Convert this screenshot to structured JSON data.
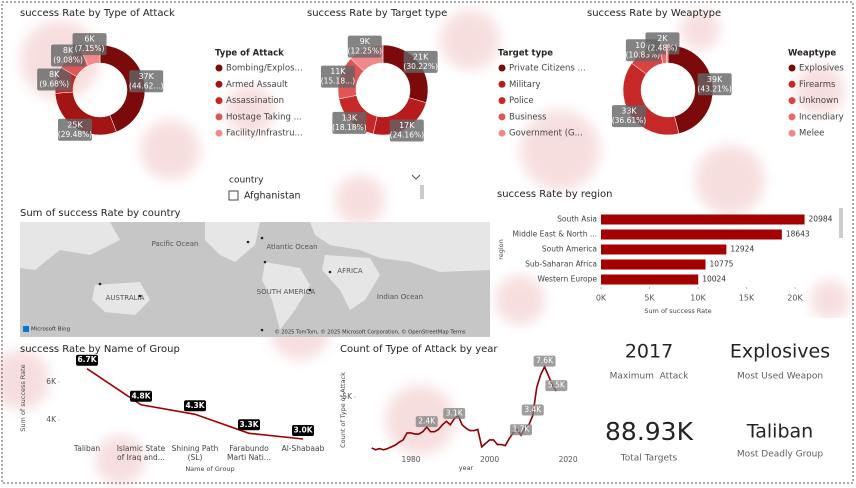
{
  "chart_data": [
    {
      "type": "pie",
      "donut": true,
      "title": "success Rate by Type of Attack",
      "legend_title": "Type of Attack",
      "categories": [
        "Bombing/Explos...",
        "Armed Assault",
        "Assassination",
        "Hostage Taking ...",
        "Facility/Infrastru..."
      ],
      "values": [
        37000,
        25000,
        8000,
        8000,
        6000
      ],
      "value_labels": [
        "37K",
        "25K",
        "8K",
        "8K",
        "6K"
      ],
      "percent_labels": [
        "(44.62...)",
        "(29.48%)",
        "(9.68%)",
        "(9.08%)",
        "(7.15%)"
      ],
      "colors": [
        "#7b0a0a",
        "#a31515",
        "#c62828",
        "#e05555",
        "#ef8a8a"
      ]
    },
    {
      "type": "pie",
      "donut": true,
      "title": "success Rate by Target type",
      "legend_title": "Target type",
      "categories": [
        "Private Citizens ...",
        "Military",
        "Police",
        "Business",
        "Government (G..."
      ],
      "values": [
        21000,
        17000,
        13000,
        11000,
        9000
      ],
      "value_labels": [
        "21K",
        "17K",
        "13K",
        "11K",
        "9K"
      ],
      "percent_labels": [
        "(30.22%)",
        "(24.16%)",
        "(18.18%)",
        "(15.18...)",
        "(12.25%)"
      ],
      "colors": [
        "#7b0a0a",
        "#b71c1c",
        "#c62828",
        "#e05555",
        "#ef8a8a"
      ]
    },
    {
      "type": "pie",
      "donut": true,
      "title": "success Rate by Weaptype",
      "legend_title": "Weaptype",
      "categories": [
        "Explosives",
        "Firearms",
        "Unknown",
        "Incendiary",
        "Melee"
      ],
      "values": [
        39000,
        33000,
        10000,
        2000,
        600
      ],
      "value_labels": [
        "39K",
        "33K",
        "10K",
        "2K",
        null
      ],
      "percent_labels": [
        "(43.21%)",
        "(36.61%)",
        "(10.83%)",
        "(2.48%)",
        null
      ],
      "colors": [
        "#7b0a0a",
        "#c62828",
        "#d84343",
        "#e86a6a",
        "#ef8a8a"
      ]
    },
    {
      "type": "map",
      "title": "Sum of success Rate by country",
      "labels": [
        "Pacific Ocean",
        "Atlantic Ocean",
        "AFRICA",
        "AUSTRALIA",
        "SOUTH AMERICA",
        "Indian Ocean"
      ],
      "attribution": "© 2025 TomTom, © 2025 Microsoft Corporation, © OpenStreetMap  Terms",
      "logo": "Microsoft Bing"
    },
    {
      "type": "bar",
      "orientation": "horizontal",
      "title": "success Rate by region",
      "x_label": "Sum of success Rate",
      "y_label": "region",
      "categories": [
        "South Asia",
        "Middle East & North ...",
        "South America",
        "Sub-Saharan Africa",
        "Western Europe"
      ],
      "values": [
        20984,
        18643,
        12924,
        10775,
        10024
      ],
      "color": "#a30000",
      "xlim": [
        0,
        22000
      ],
      "xticks": [
        {
          "value": 0,
          "label": "0K"
        },
        {
          "value": 5000,
          "label": "5K"
        },
        {
          "value": 10000,
          "label": "10K"
        },
        {
          "value": 15000,
          "label": "15K"
        },
        {
          "value": 20000,
          "label": "20K"
        }
      ]
    },
    {
      "type": "line",
      "title": "success Rate by Name of Group",
      "x_label": "Name of Group",
      "y_label": "Sum of success Rate",
      "categories": [
        "Taliban",
        "Islamic State of Iraq and...",
        "Shining Path (SL)",
        "Farabundo Marti Nati...",
        "Al-Shabaab"
      ],
      "values": [
        6700,
        4800,
        4300,
        3300,
        3000
      ],
      "value_labels": [
        "6.7K",
        "4.8K",
        "4.3K",
        "3.3K",
        "3.0K"
      ],
      "color": "#a30000",
      "label_color": "#000000",
      "ylim": [
        3000,
        7000
      ],
      "yticks": [
        {
          "value": 4000,
          "label": "4K"
        },
        {
          "value": 6000,
          "label": "6K"
        }
      ]
    },
    {
      "type": "line",
      "title": "Count of Type of Attack by year",
      "x_label": "year",
      "y_label": "Count of Type of Attack",
      "x": [
        1970,
        1971,
        1972,
        1973,
        1974,
        1975,
        1976,
        1977,
        1978,
        1979,
        1980,
        1981,
        1982,
        1983,
        1984,
        1985,
        1986,
        1987,
        1988,
        1989,
        1990,
        1991,
        1992,
        1993,
        1994,
        1995,
        1996,
        1997,
        1998,
        1999,
        2000,
        2001,
        2002,
        2003,
        2004,
        2005,
        2006,
        2007,
        2008,
        2009,
        2010,
        2011,
        2012,
        2013,
        2014,
        2015,
        2016,
        2017
      ],
      "values": [
        600,
        450,
        550,
        450,
        550,
        700,
        850,
        1100,
        1300,
        1900,
        1900,
        1800,
        1800,
        2000,
        2400,
        2000,
        2000,
        2200,
        2600,
        2900,
        2600,
        3100,
        3400,
        2600,
        2300,
        2100,
        2100,
        2200,
        700,
        1000,
        1300,
        1300,
        900,
        900,
        800,
        1400,
        1900,
        2200,
        1700,
        2300,
        2600,
        3400,
        5800,
        6900,
        7600,
        6800,
        6000,
        5500
      ],
      "value_labels": [
        null,
        null,
        null,
        null,
        null,
        null,
        null,
        null,
        null,
        null,
        null,
        null,
        null,
        null,
        "2.4K",
        null,
        null,
        null,
        null,
        null,
        null,
        "3.1K",
        null,
        null,
        null,
        null,
        null,
        null,
        null,
        null,
        null,
        null,
        null,
        null,
        null,
        null,
        null,
        null,
        "1.7K",
        null,
        null,
        "3.4K",
        null,
        null,
        "7.6K",
        null,
        null,
        "5.5K"
      ],
      "color": "#8b0000",
      "label_color": "#7f7f7f",
      "xlim": [
        1966,
        2022
      ],
      "xticks": [
        1980,
        2000,
        2020
      ],
      "ylim": [
        0,
        8000
      ],
      "yticks": [
        {
          "value": 5000,
          "label": "5K"
        }
      ]
    }
  ],
  "slicer": {
    "title": "country",
    "items": [
      "Afghanistan"
    ]
  },
  "cards": [
    {
      "value": "2017",
      "label": "Maximum  Attack"
    },
    {
      "value": "Explosives",
      "label": "Most Used Weapon"
    },
    {
      "value": "88.93K",
      "label": "Total Targets"
    },
    {
      "value": "Taliban",
      "label": "Most Deadly Group"
    }
  ]
}
